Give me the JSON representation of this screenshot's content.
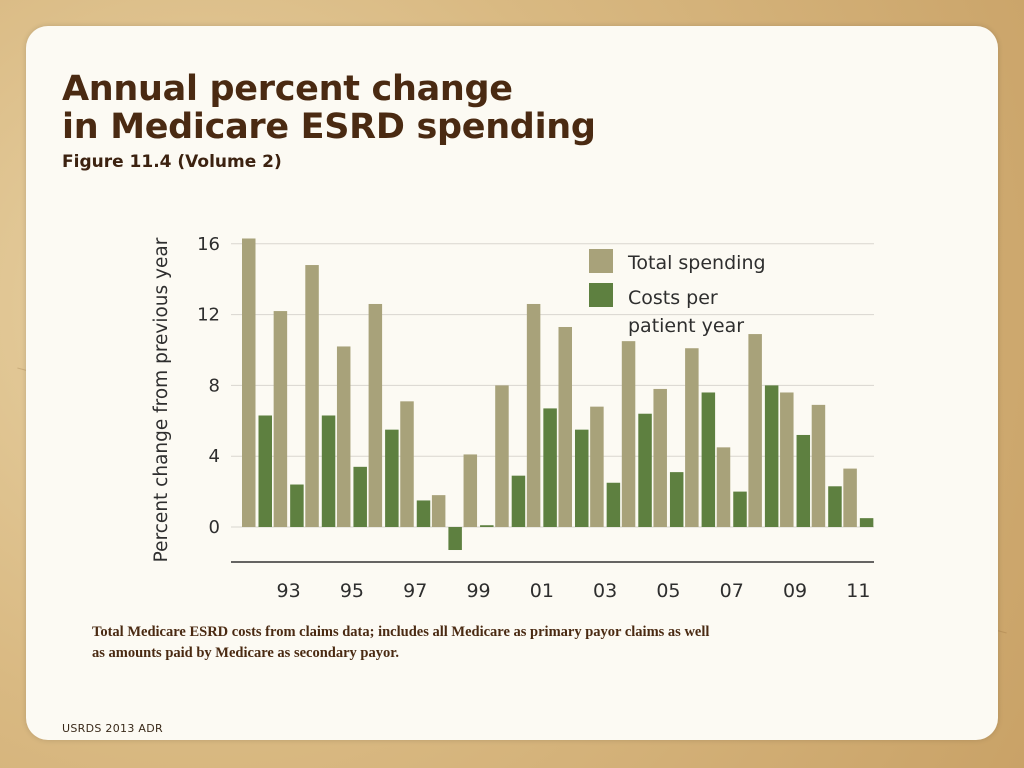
{
  "slide": {
    "title_line1": "Annual percent change",
    "title_line2": "in Medicare ESRD spending",
    "subtitle": "Figure 11.4 (Volume 2)",
    "caption": "Total Medicare ESRD costs from claims data; includes all Medicare as primary payor claims as well as amounts paid by Medicare as secondary payor.",
    "footer": "USRDS 2013 ADR"
  },
  "colors": {
    "total": "#a8a27a",
    "per_patient": "#5e8040",
    "grid": "#d9d6cf",
    "axis_text": "#2e2e2e"
  },
  "chart_data": {
    "type": "bar",
    "title": "",
    "xlabel": "",
    "ylabel": "Percent change from previous year",
    "ylim": [
      -1.5,
      16
    ],
    "yticks": [
      0,
      4,
      8,
      12,
      16
    ],
    "categories": [
      "1992",
      "1993",
      "1994",
      "1995",
      "1996",
      "1997",
      "1998",
      "1999",
      "2000",
      "2001",
      "2002",
      "2003",
      "2004",
      "2005",
      "2006",
      "2007",
      "2008",
      "2009",
      "2010",
      "2011"
    ],
    "tick_labels": [
      "",
      "93",
      "",
      "95",
      "",
      "97",
      "",
      "99",
      "",
      "01",
      "",
      "03",
      "",
      "05",
      "",
      "07",
      "",
      "09",
      "",
      "11"
    ],
    "series": [
      {
        "name": "Total spending",
        "values": [
          16.3,
          12.2,
          14.8,
          10.2,
          12.6,
          7.1,
          1.8,
          4.1,
          8.0,
          12.6,
          11.3,
          6.8,
          10.5,
          7.8,
          10.1,
          4.5,
          10.9,
          7.6,
          6.9,
          3.3
        ]
      },
      {
        "name": "Costs per patient year",
        "values": [
          6.3,
          2.4,
          6.3,
          3.4,
          5.5,
          1.5,
          -1.3,
          0.1,
          2.9,
          6.7,
          5.5,
          2.5,
          6.4,
          3.1,
          7.6,
          2.0,
          8.0,
          5.2,
          2.3,
          0.5
        ]
      }
    ],
    "legend": [
      "Total spending",
      "Costs per",
      "patient year"
    ]
  }
}
